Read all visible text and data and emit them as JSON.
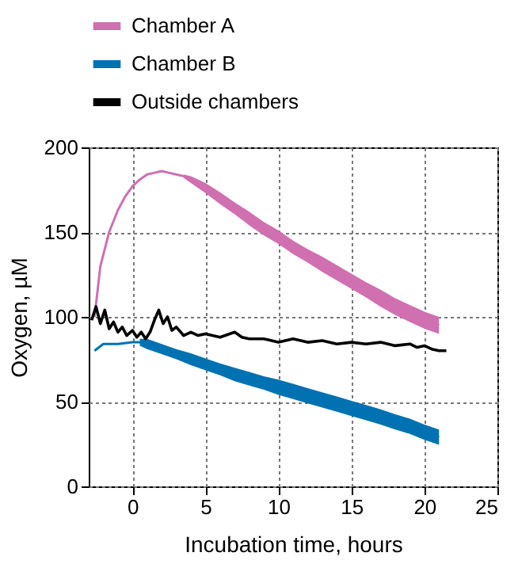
{
  "chart_data": {
    "type": "line",
    "xlabel": "Incubation time, hours",
    "ylabel": "Oxygen, µM",
    "xlim": [
      -3,
      25
    ],
    "xticks": [
      0,
      5,
      10,
      15,
      20,
      25
    ],
    "ylim": [
      0,
      200
    ],
    "yticks": [
      0,
      50,
      100,
      150,
      200
    ],
    "grid": true,
    "legend": "top",
    "marker": "none",
    "line_style": "solid",
    "series": [
      {
        "name": "Chamber A",
        "color": "#d070b0",
        "x": [
          -2.6,
          -2.2,
          -1.6,
          -1,
          -0.5,
          0,
          0.5,
          1,
          1.5,
          2,
          2.5,
          3,
          3.5,
          4,
          5,
          6,
          7,
          8,
          9,
          10,
          11,
          12,
          13,
          14,
          15,
          16,
          17,
          18,
          19,
          20,
          21
        ],
        "values": [
          100,
          130,
          150,
          163,
          171,
          177,
          181,
          184,
          185,
          186,
          185,
          184,
          183,
          181,
          176,
          170,
          164,
          158,
          152,
          147,
          141,
          136,
          131,
          126,
          121,
          116,
          111,
          106,
          102,
          98,
          95
        ],
        "lower": [
          null,
          null,
          null,
          null,
          null,
          null,
          null,
          null,
          null,
          null,
          null,
          null,
          182,
          179,
          173,
          166.5,
          160.5,
          154,
          148,
          143,
          137,
          132,
          126.5,
          121.5,
          116.5,
          111.5,
          106,
          101,
          97,
          93,
          90
        ],
        "upper": [
          null,
          null,
          null,
          null,
          null,
          null,
          null,
          null,
          null,
          null,
          null,
          null,
          184,
          183,
          179,
          173.5,
          167.5,
          162,
          156,
          151,
          145,
          140,
          135.5,
          130.5,
          125.5,
          120.5,
          116,
          111,
          107,
          103,
          100
        ]
      },
      {
        "name": "Chamber B",
        "color": "#0072b2",
        "x": [
          -2.6,
          -2,
          -1,
          0,
          0.5,
          1,
          2,
          3,
          4,
          5,
          6,
          7,
          8,
          9,
          10,
          11,
          12,
          13,
          14,
          15,
          16,
          17,
          18,
          19,
          20,
          21
        ],
        "values": [
          80,
          84,
          84,
          85,
          85,
          84,
          81,
          78,
          75,
          72,
          69,
          66,
          64,
          61,
          59,
          56,
          54,
          51,
          49,
          46,
          44,
          41,
          38,
          36,
          32,
          29
        ],
        "lower": [
          null,
          null,
          null,
          null,
          83,
          81,
          78,
          75,
          71.5,
          68.5,
          65.5,
          62,
          59.5,
          57,
          54,
          51.5,
          49,
          46.5,
          44,
          41.5,
          39,
          36.5,
          33.5,
          31,
          27.5,
          24.5
        ],
        "upper": [
          null,
          null,
          null,
          null,
          87,
          87,
          84,
          81,
          78.5,
          75.5,
          72.5,
          70,
          67.5,
          65,
          63,
          60.5,
          58,
          55.5,
          53,
          50.5,
          48,
          45.5,
          42.5,
          40,
          36.5,
          33.5
        ]
      },
      {
        "name": "Outside chambers",
        "color": "#000000",
        "x": [
          -2.8,
          -2.5,
          -2.2,
          -1.9,
          -1.6,
          -1.3,
          -1,
          -0.7,
          -0.4,
          0,
          0.3,
          0.6,
          0.9,
          1.2,
          1.5,
          1.8,
          2.1,
          2.4,
          2.7,
          3,
          3.5,
          4,
          4.5,
          5,
          6,
          7,
          7.5,
          8,
          9,
          10,
          11,
          12,
          13,
          14,
          15,
          16,
          17,
          18,
          19,
          19.5,
          20,
          20.5,
          21,
          21.5
        ],
        "values": [
          98,
          106,
          96,
          104,
          93,
          97,
          91,
          94,
          89,
          92,
          88,
          91,
          87,
          91,
          98,
          104,
          96,
          100,
          92,
          94,
          89,
          91,
          89,
          90,
          88,
          91,
          88,
          87,
          87,
          85,
          87,
          85,
          86,
          84,
          85,
          84,
          85,
          83,
          84,
          82,
          83,
          81,
          80,
          80
        ]
      }
    ]
  }
}
